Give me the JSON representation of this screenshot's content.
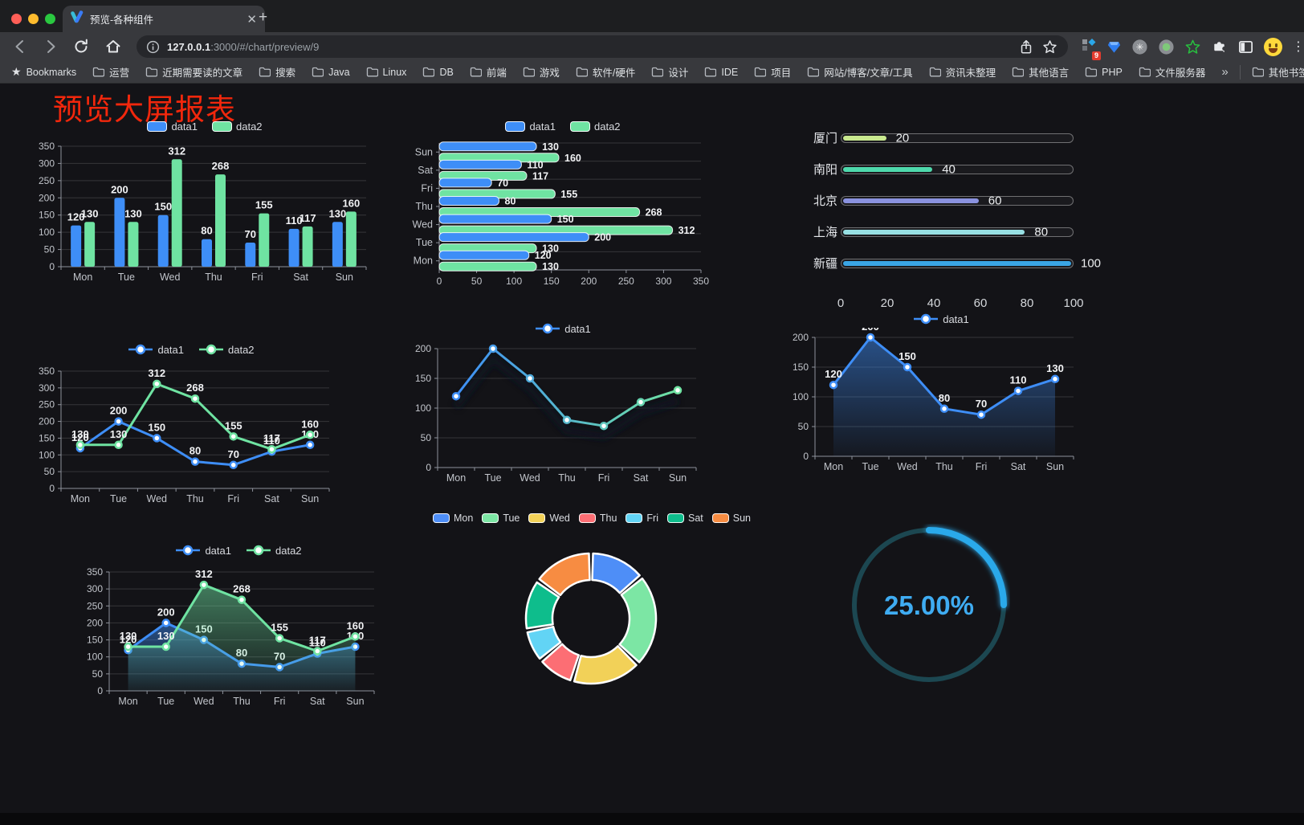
{
  "browser": {
    "tab_title": "预览-各种组件",
    "url_host": "127.0.0.1",
    "url_rest": ":3000/#/chart/preview/9",
    "extension_badge": "9",
    "bookmarks_label": "Bookmarks",
    "bookmark_folders": [
      "运营",
      "近期需要读的文章",
      "搜索",
      "Java",
      "Linux",
      "DB",
      "前端",
      "游戏",
      "软件/硬件",
      "设计",
      "IDE",
      "项目",
      "网站/博客/文章/工具",
      "资讯未整理",
      "其他语言",
      "PHP",
      "文件服务器"
    ],
    "overflow_chevron": "»",
    "other_bookmarks": "其他书签"
  },
  "page": {
    "title": "预览大屏报表",
    "title_color": "#f2270c"
  },
  "colors": {
    "data1": "#3E8EF7",
    "data2": "#6FE3A2",
    "label": "#f2f3f5",
    "axis_text": "#c2c5cb",
    "axis_line": "#8e929b",
    "grid": "rgba(255,255,255,0.15)",
    "legend_text": "#d9dbe0",
    "gauge_blue": "#2BA9EA",
    "gauge_track": "#1c4751",
    "gauge_text": "#3FACF2"
  },
  "chart_data": [
    {
      "id": "c1",
      "type": "bar",
      "legend_position": "top",
      "grid": true,
      "categories": [
        "Mon",
        "Tue",
        "Wed",
        "Thu",
        "Fri",
        "Sat",
        "Sun"
      ],
      "ylim": [
        0,
        350
      ],
      "ytick": 50,
      "show_labels": true,
      "series": [
        {
          "name": "data1",
          "color": "#3E8EF7",
          "values": [
            120,
            200,
            150,
            80,
            70,
            110,
            130
          ]
        },
        {
          "name": "data2",
          "color": "#6FE3A2",
          "values": [
            130,
            130,
            312,
            268,
            155,
            117,
            160
          ]
        }
      ]
    },
    {
      "id": "c2",
      "type": "bar-h",
      "legend_position": "top",
      "grid": true,
      "categories_top_to_bottom": [
        "Sun",
        "Sat",
        "Fri",
        "Thu",
        "Wed",
        "Tue",
        "Mon"
      ],
      "xlim": [
        0,
        350
      ],
      "xtick": 50,
      "show_labels": true,
      "series": [
        {
          "name": "data1",
          "color": "#3E8EF7",
          "values": [
            130,
            110,
            70,
            80,
            150,
            200,
            120
          ]
        },
        {
          "name": "data2",
          "color": "#6FE3A2",
          "values": [
            160,
            117,
            155,
            268,
            312,
            130,
            130
          ]
        }
      ]
    },
    {
      "id": "c3",
      "type": "progress",
      "max": 100,
      "axis_ticks": [
        0,
        20,
        40,
        60,
        80,
        100
      ],
      "items": [
        {
          "label": "厦门",
          "value": 20,
          "color": "#C9E98F"
        },
        {
          "label": "南阳",
          "value": 40,
          "color": "#4ED9AC"
        },
        {
          "label": "北京",
          "value": 60,
          "color": "#8A92DF"
        },
        {
          "label": "上海",
          "value": 80,
          "color": "#97DFE3"
        },
        {
          "label": "新疆",
          "value": 100,
          "color": "#3AA5E5"
        }
      ]
    },
    {
      "id": "c4",
      "type": "line",
      "legend_position": "top",
      "grid": true,
      "categories": [
        "Mon",
        "Tue",
        "Wed",
        "Thu",
        "Fri",
        "Sat",
        "Sun"
      ],
      "ylim": [
        0,
        350
      ],
      "ytick": 50,
      "show_labels": true,
      "series": [
        {
          "name": "data1",
          "color": "#3E8EF7",
          "values": [
            120,
            200,
            150,
            80,
            70,
            110,
            130
          ]
        },
        {
          "name": "data2",
          "color": "#6FE3A2",
          "values": [
            130,
            130,
            312,
            268,
            155,
            117,
            160
          ]
        }
      ]
    },
    {
      "id": "c5",
      "type": "line",
      "legend_position": "top",
      "grid": true,
      "shadow": true,
      "categories": [
        "Mon",
        "Tue",
        "Wed",
        "Thu",
        "Fri",
        "Sat",
        "Sun"
      ],
      "ylim": [
        0,
        200
      ],
      "ytick": 50,
      "show_labels": false,
      "series": [
        {
          "name": "data1",
          "gradient": [
            "#3E8EF7",
            "#6FE3A2"
          ],
          "values": [
            120,
            200,
            150,
            80,
            70,
            110,
            130
          ]
        }
      ]
    },
    {
      "id": "c6",
      "type": "line",
      "legend_position": "top",
      "grid": true,
      "categories": [
        "Mon",
        "Tue",
        "Wed",
        "Thu",
        "Fri",
        "Sat",
        "Sun"
      ],
      "ylim": [
        0,
        200
      ],
      "ytick": 50,
      "show_labels": true,
      "series": [
        {
          "name": "data1",
          "color": "#3E8EF7",
          "area": true,
          "values": [
            120,
            200,
            150,
            80,
            70,
            110,
            130
          ]
        }
      ]
    },
    {
      "id": "c7",
      "type": "line",
      "legend_position": "top",
      "grid": true,
      "categories": [
        "Mon",
        "Tue",
        "Wed",
        "Thu",
        "Fri",
        "Sat",
        "Sun"
      ],
      "ylim": [
        0,
        350
      ],
      "ytick": 50,
      "show_labels": true,
      "series": [
        {
          "name": "data1",
          "color": "#3E8EF7",
          "area": true,
          "values": [
            120,
            200,
            150,
            80,
            70,
            110,
            130
          ]
        },
        {
          "name": "data2",
          "color": "#6FE3A2",
          "area": true,
          "values": [
            130,
            130,
            312,
            268,
            155,
            117,
            160
          ]
        }
      ]
    },
    {
      "id": "c8",
      "type": "pie",
      "donut": true,
      "legend_position": "top",
      "labels": [
        "Mon",
        "Tue",
        "Wed",
        "Thu",
        "Fri",
        "Sat",
        "Sun"
      ],
      "values": [
        120,
        200,
        150,
        80,
        70,
        110,
        130
      ],
      "colors": [
        "#4E8EF7",
        "#7CE6A4",
        "#F2D158",
        "#FC6E74",
        "#62D4F5",
        "#0EBD8C",
        "#F78C42"
      ]
    },
    {
      "id": "c9",
      "type": "gauge",
      "value": 25,
      "max": 100,
      "display": "25.00%",
      "color": "#2BA9EA",
      "track_color": "#1c4751"
    }
  ]
}
